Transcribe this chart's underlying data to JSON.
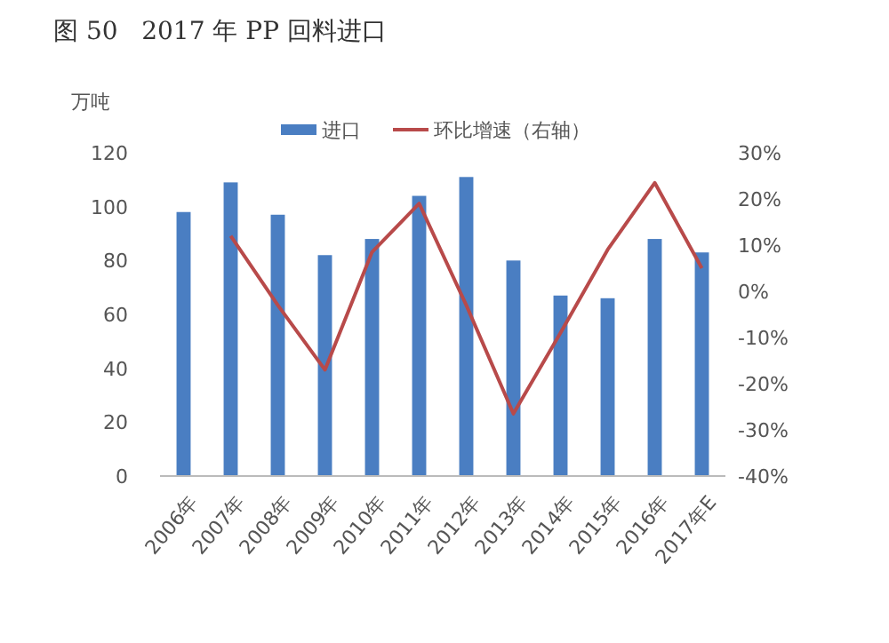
{
  "chart_data": {
    "type": "bar",
    "title": "图 50   2017 年 PP 回料进口",
    "ylabel": "万吨",
    "categories": [
      "2006年",
      "2007年",
      "2008年",
      "2009年",
      "2010年",
      "2011年",
      "2012年",
      "2013年",
      "2014年",
      "2015年",
      "2016年",
      "2017年E"
    ],
    "series": [
      {
        "name": "进口",
        "color": "#4a7ec2",
        "values": [
          98,
          109,
          97,
          82,
          88,
          104,
          111,
          80,
          67,
          66,
          88,
          83
        ]
      },
      {
        "name": "环比增速（右轴）",
        "type": "line",
        "axis": "y2",
        "color": "#b84a4a",
        "values": [
          null,
          12,
          -3,
          -17,
          8.5,
          19,
          -3,
          -26.5,
          -9,
          9,
          23.5,
          5
        ]
      }
    ],
    "ylim": [
      0,
      120
    ],
    "yticks": [
      0,
      20,
      40,
      60,
      80,
      100,
      120
    ],
    "y2lim": [
      -40,
      30
    ],
    "y2ticks": [
      {
        "value": -40,
        "label": "-40%"
      },
      {
        "value": -30,
        "label": "-30%"
      },
      {
        "value": -20,
        "label": "-20%"
      },
      {
        "value": -10,
        "label": "-10%"
      },
      {
        "value": 0,
        "label": "0%"
      },
      {
        "value": 10,
        "label": "10%"
      },
      {
        "value": 20,
        "label": "20%"
      },
      {
        "value": 30,
        "label": "30%"
      }
    ],
    "legend": "top",
    "marker": "none",
    "line_style": "solid"
  }
}
